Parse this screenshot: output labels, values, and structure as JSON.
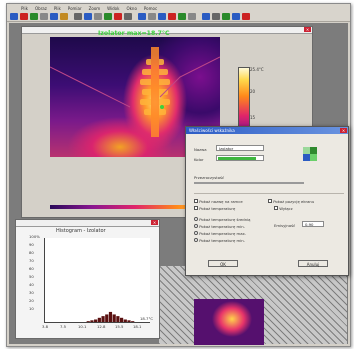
{
  "app": {
    "menu": [
      "Plik",
      "Obraz",
      "Plik",
      "Pomiar",
      "Zoom",
      "Widok",
      "Okno",
      "Pomoc"
    ],
    "toolbar_colors": [
      "#2a5bc2",
      "#c22",
      "#2a8a2a",
      "#888",
      "#2a5bc2",
      "#c28a22",
      "#666",
      "#2a5bc2",
      "#888",
      "#2a8a2a",
      "#c22",
      "#666",
      "#2a5bc2",
      "#888",
      "#2a5bc2",
      "#c22",
      "#2a8a2a",
      "#888",
      "#2a5bc2",
      "#666",
      "#2a8a2a",
      "#2a5bc2",
      "#c22"
    ]
  },
  "thermal_window": {
    "label": "Izolator max=18.7°C",
    "scale_labels": [
      "25.4°C",
      "20",
      "15",
      "10.3"
    ]
  },
  "histogram": {
    "title": "Histogram - Izolator",
    "marker": "18.7°C",
    "chart_data": {
      "type": "bar",
      "title": "Histogram - Izolator",
      "y_ticks": [
        "100%",
        "90",
        "80",
        "70",
        "60",
        "50",
        "40",
        "30",
        "20",
        "10"
      ],
      "x_ticks": [
        "3.8",
        "7.5",
        "10.1",
        "12.8",
        "15.5",
        "18.1"
      ],
      "ylim": [
        0,
        100
      ],
      "xlim": [
        3.8,
        20.8
      ],
      "x": [
        10.8,
        11.4,
        12.0,
        12.6,
        13.2,
        13.8,
        14.4,
        15.0,
        15.6,
        16.2,
        16.8,
        17.4,
        18.0
      ],
      "values": [
        1,
        2,
        3,
        5,
        7,
        9,
        12,
        9,
        7,
        5,
        3,
        2,
        1
      ]
    }
  },
  "dialog": {
    "title": "Właściwości wskaźnika",
    "name_label": "Nazwa",
    "name_value": "Izolator",
    "color_label": "Kolor",
    "color_value": "#3fb63f",
    "width_label": "Przezroczystość",
    "checkboxes": [
      "Pokaż nazwę na ramce",
      "Pokaż temperaturę",
      "Pokaż pozycję kursora"
    ],
    "right_checkbox": "Pokaż pozycję ekranu",
    "sub_checkbox": "Wyłącz",
    "radios": [
      "Pokaż temperaturę średnią",
      "Pokaż temperaturę min.",
      "Pokaż temperaturę max."
    ],
    "extra_radio": "Pokaż temperaturę min.",
    "field_label": "Emisyjność",
    "field_value": "0.90",
    "ok": "OK",
    "cancel": "Anuluj"
  }
}
